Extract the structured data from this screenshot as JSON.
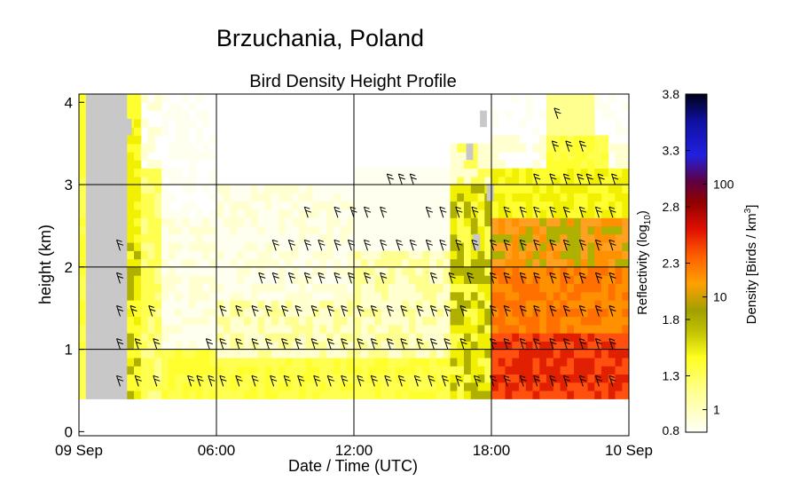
{
  "chart_data": {
    "type": "heatmap",
    "title": "Brzuchania, Poland",
    "subtitle": "Bird Density Height Profile",
    "xlabel": "Date / Time (UTC)",
    "ylabel": "height (km)",
    "x_ticks": [
      "09 Sep",
      "06:00",
      "12:00",
      "18:00",
      "10 Sep"
    ],
    "y_ticks": [
      "0",
      "1",
      "2",
      "3",
      "4"
    ],
    "xlim_hours": [
      0,
      24
    ],
    "ylim_km": [
      -0.05,
      4.1
    ],
    "grid": true,
    "colorbar": {
      "left_label": "Reflectivity (log10)",
      "right_label": "Density [Birds / km3]",
      "left_ticks": [
        0.8,
        1.3,
        1.8,
        2.3,
        2.8,
        3.3,
        3.8
      ],
      "right_ticks": [
        "1",
        "10",
        "100"
      ],
      "right_tick_reflectivity": [
        1.0,
        2.0,
        3.0
      ],
      "range": [
        0.8,
        3.8
      ]
    },
    "colors": {
      "no_data": "#c8c8c8",
      "low": "#fffff0",
      "yellow": "#ffff30",
      "olive": "#b0b000",
      "orange": "#ff9000",
      "red": "#e02000",
      "dark_red": "#800000",
      "blue": "#1010d0",
      "black": "#000010"
    },
    "series": [
      {
        "name": "nodata",
        "x": [
          0.3,
          0.6,
          0.9,
          1.2,
          1.5,
          1.8,
          2.0,
          16.9,
          17.2,
          17.5,
          17.8
        ],
        "y": [
          2.5,
          3.2,
          3.9,
          1.8,
          0.8,
          2.6,
          3.6,
          3.3,
          2.2,
          3.7,
          2.8
        ]
      },
      {
        "name": "density_by_time_block",
        "x": [
          0,
          2,
          6,
          12,
          16.5,
          18,
          21,
          24
        ],
        "y": [
          1.5,
          1.6,
          1.1,
          1.2,
          1.8,
          2.1,
          2.3,
          2.2
        ]
      }
    ]
  }
}
